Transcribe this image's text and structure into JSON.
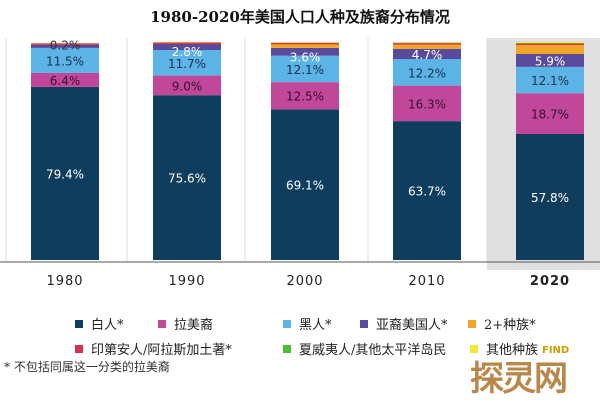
{
  "chart_data": {
    "type": "bar",
    "stacked": true,
    "title": "1980-2020年美国人口人种及族裔分布情况",
    "categories": [
      "1980",
      "1990",
      "2000",
      "2010",
      "2020"
    ],
    "highlight": "2020",
    "ylim": [
      0,
      100
    ],
    "series": [
      {
        "name": "白人*",
        "color": "#0f3d5e",
        "label_color": "#ffffff",
        "values": [
          79.4,
          75.6,
          69.1,
          63.7,
          57.8
        ],
        "show": [
          true,
          true,
          true,
          true,
          true
        ]
      },
      {
        "name": "拉美裔",
        "color": "#c0479a",
        "label_color": "#3a1030",
        "values": [
          6.4,
          9.0,
          12.5,
          16.3,
          18.7
        ],
        "show": [
          true,
          true,
          true,
          true,
          true
        ]
      },
      {
        "name": "黑人*",
        "color": "#5cb3e6",
        "label_color": "#16324a",
        "values": [
          11.5,
          11.7,
          12.1,
          12.2,
          12.1
        ],
        "show": [
          true,
          true,
          true,
          true,
          true
        ]
      },
      {
        "name": "亚裔美国人*",
        "color": "#5a4a9c",
        "label_color": "#ffffff",
        "values": [
          1.5,
          2.8,
          3.6,
          4.7,
          5.9
        ],
        "show": [
          false,
          true,
          true,
          true,
          true
        ]
      },
      {
        "name": "2+种族*",
        "color": "#f2a626",
        "label_color": "#333333",
        "values": [
          0,
          0,
          1.6,
          1.9,
          4.1
        ],
        "show": [
          false,
          false,
          false,
          false,
          false
        ]
      },
      {
        "name": "印第安人/阿拉斯加土著*",
        "color": "#d6334f",
        "label_color": "#333333",
        "values": [
          0.6,
          0.7,
          0.7,
          0.7,
          0.7
        ],
        "show": [
          false,
          false,
          false,
          false,
          false
        ]
      },
      {
        "name": "夏威夷人/其他太平洋岛民",
        "color": "#4bbf2e",
        "label_color": "#333333",
        "values": [
          0,
          0,
          0.1,
          0.2,
          0.2
        ],
        "show": [
          false,
          false,
          false,
          false,
          false
        ]
      },
      {
        "name": "其他种族",
        "color": "#f5e93a",
        "label_color": "#333333",
        "values": [
          0.2,
          0.2,
          0.2,
          0.2,
          0.5
        ],
        "show": [
          true,
          false,
          false,
          false,
          false
        ]
      }
    ],
    "label_values": [
      [
        "79.4%",
        "6.4%",
        "11.5%",
        "",
        "",
        "",
        "",
        "0.2%"
      ],
      [
        "75.6%",
        "9.0%",
        "11.7%",
        "2.8%",
        "",
        "",
        "",
        ""
      ],
      [
        "69.1%",
        "12.5%",
        "12.1%",
        "3.6%",
        "",
        "",
        "",
        ""
      ],
      [
        "63.7%",
        "16.3%",
        "12.2%",
        "4.7%",
        "",
        "",
        "",
        ""
      ],
      [
        "57.8%",
        "18.7%",
        "12.1%",
        "5.9%",
        "",
        "",
        "",
        ""
      ]
    ],
    "legend": "bottom"
  },
  "note": "* 不包括同属这一分类的拉美裔",
  "watermark": {
    "text": "探灵网",
    "sub": "FIND"
  }
}
